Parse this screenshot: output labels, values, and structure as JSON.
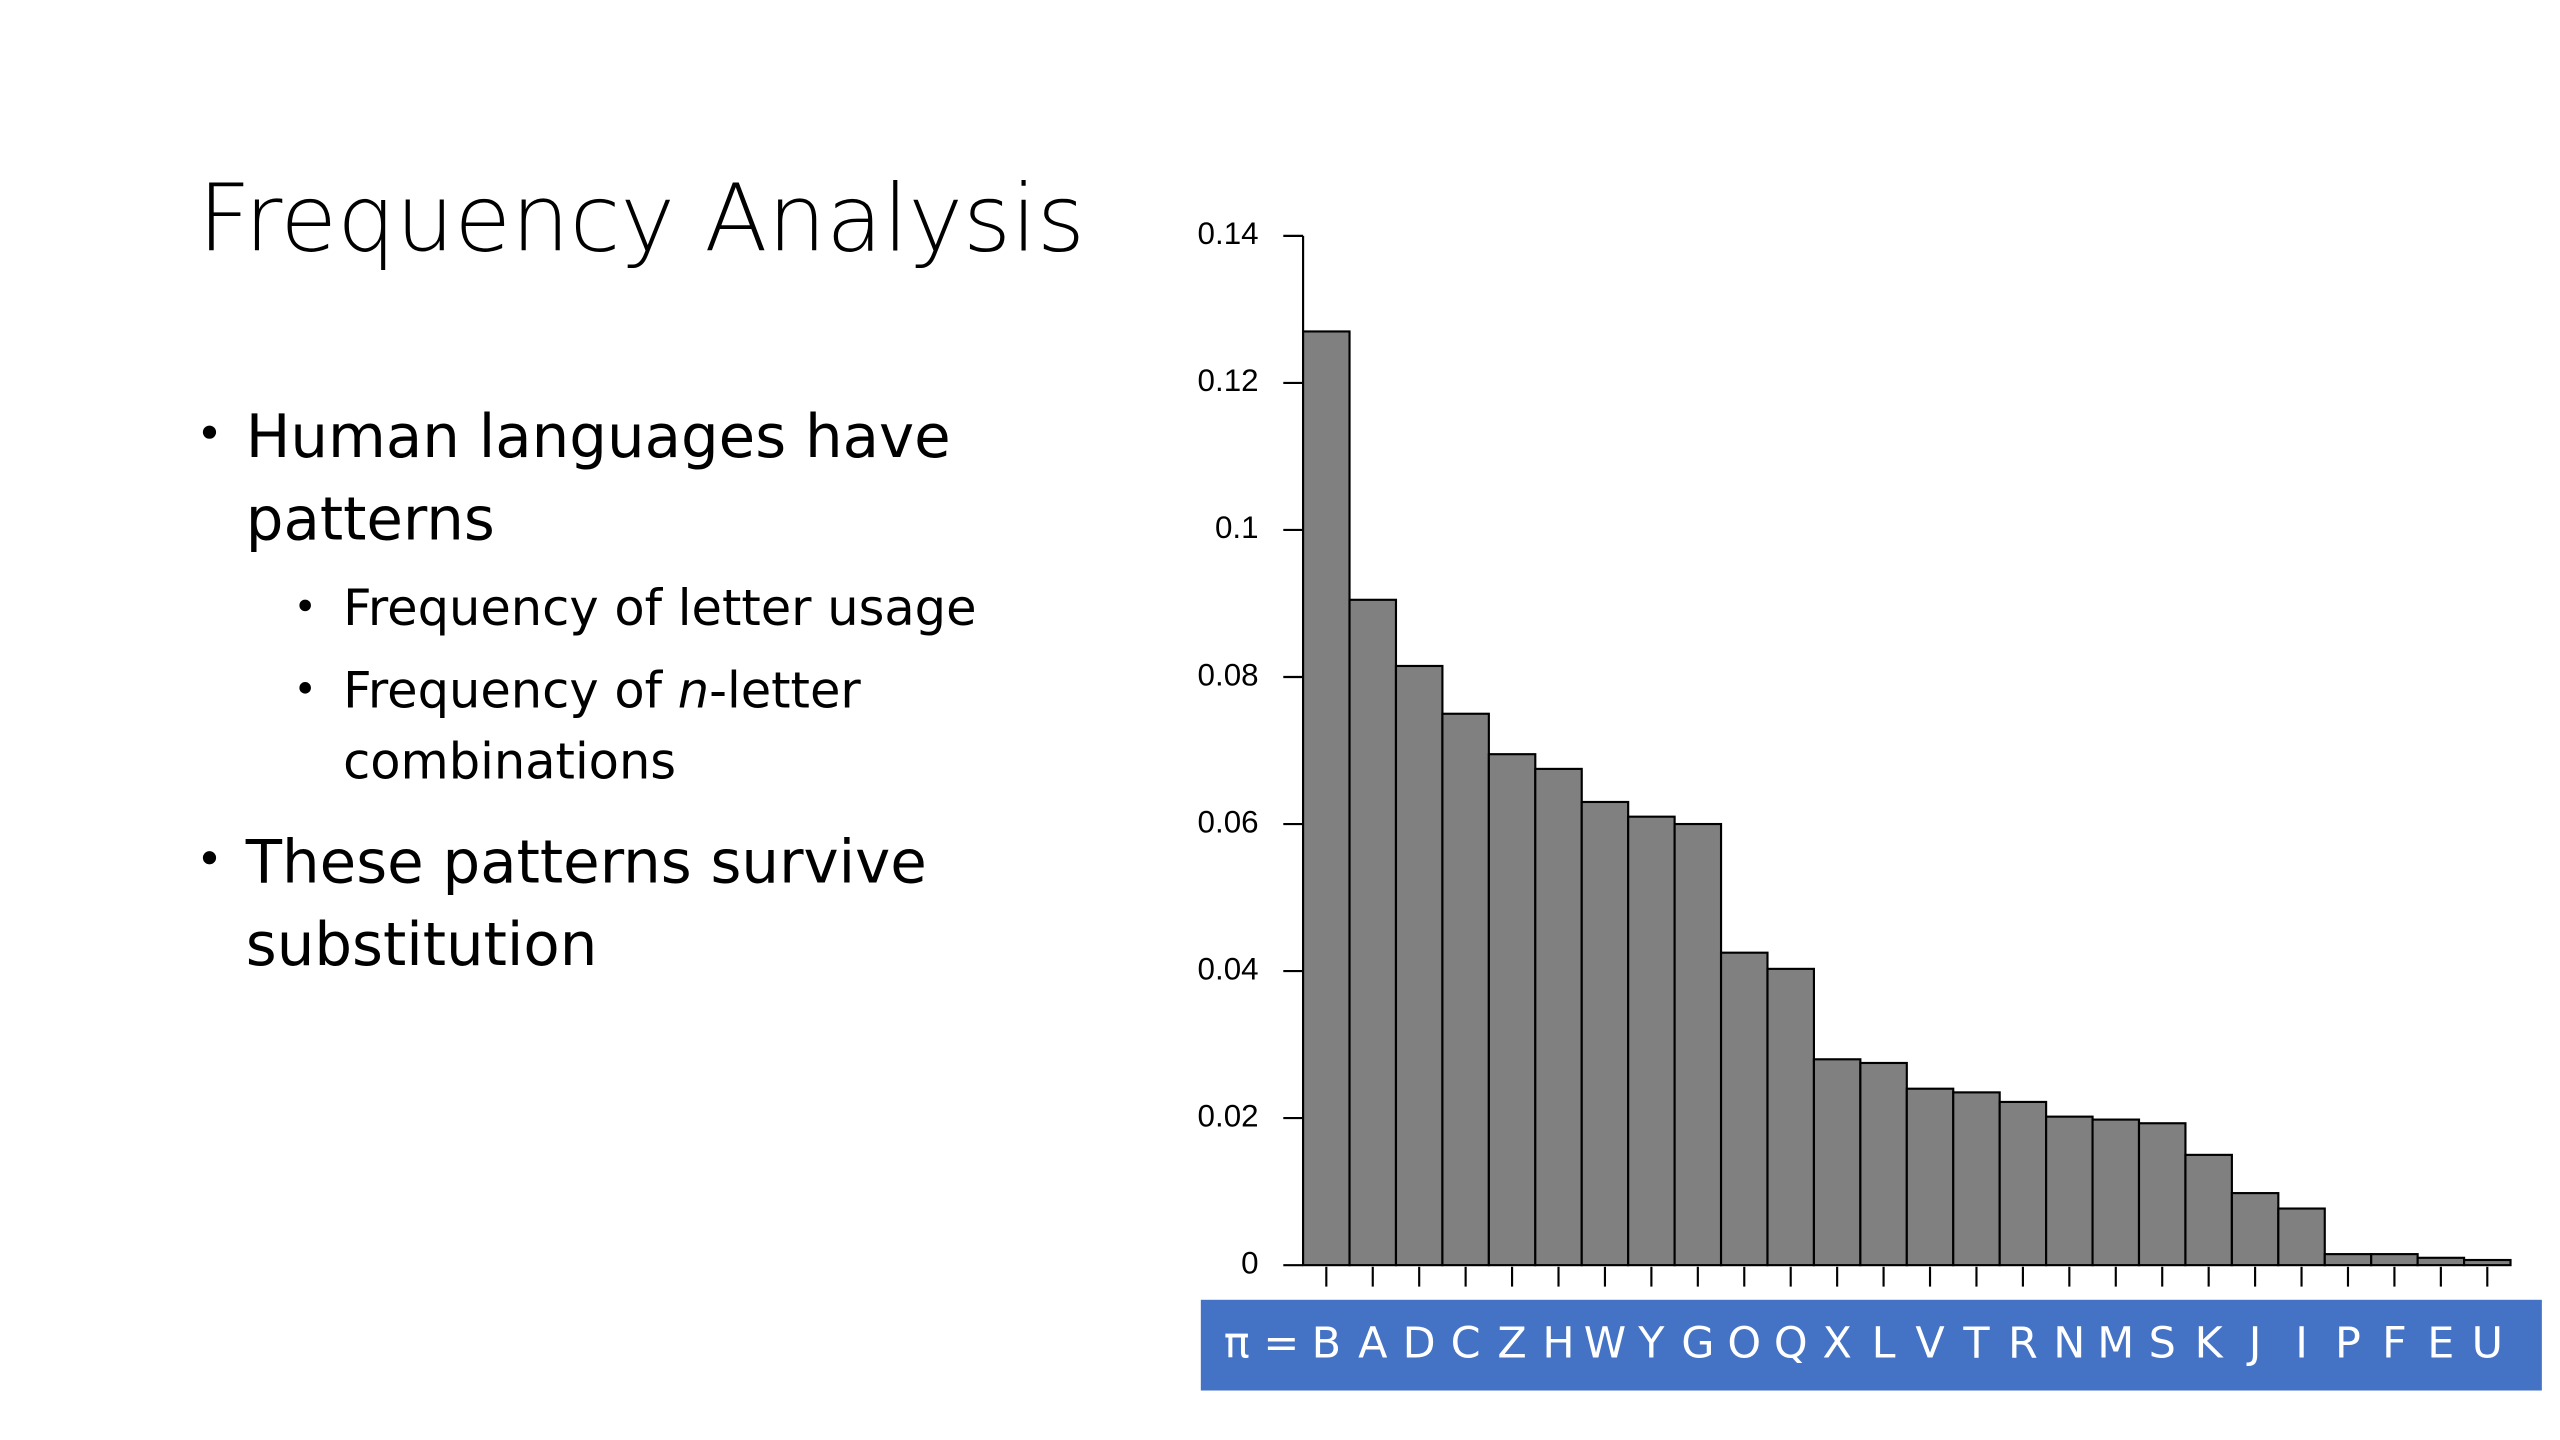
{
  "slide": {
    "title": "Frequency Analysis",
    "bullets": [
      {
        "lines": [
          "Human languages have",
          "patterns"
        ],
        "sub": [
          {
            "lines": [
              [
                "Frequency of letter usage"
              ]
            ]
          },
          {
            "lines": [
              [
                "Frequency of ",
                "n",
                "-letter"
              ],
              [
                "combinations"
              ]
            ]
          }
        ]
      },
      {
        "lines": [
          "These patterns survive",
          "substitution"
        ]
      }
    ]
  },
  "chart_data": {
    "type": "bar",
    "category_prefix": "π =",
    "categories": [
      "B",
      "A",
      "D",
      "C",
      "Z",
      "H",
      "W",
      "Y",
      "G",
      "O",
      "Q",
      "X",
      "L",
      "V",
      "T",
      "R",
      "N",
      "M",
      "S",
      "K",
      "J",
      "I",
      "P",
      "F",
      "E",
      "U"
    ],
    "values": [
      0.127,
      0.0905,
      0.0815,
      0.075,
      0.0695,
      0.0675,
      0.063,
      0.061,
      0.06,
      0.0425,
      0.0403,
      0.028,
      0.0275,
      0.024,
      0.0235,
      0.0222,
      0.0202,
      0.0198,
      0.0193,
      0.015,
      0.0098,
      0.0077,
      0.0015,
      0.0015,
      0.001,
      0.0007
    ],
    "color": "#808080",
    "category_band_color": "#4472c4",
    "ylim": [
      0,
      0.14
    ],
    "yticks": [
      0,
      0.02,
      0.04,
      0.06,
      0.08,
      0.1,
      0.12,
      0.14
    ]
  }
}
